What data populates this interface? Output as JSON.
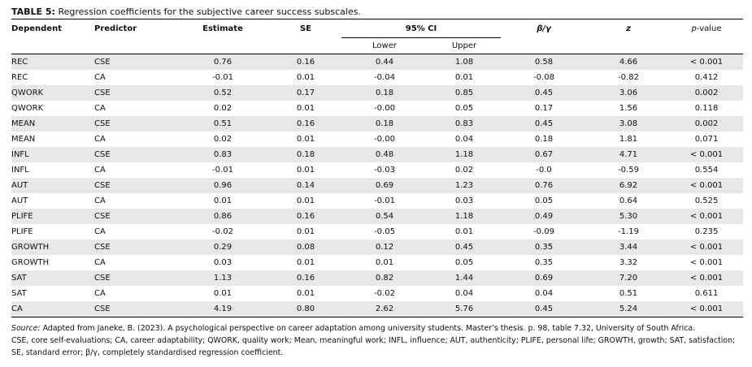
{
  "caption": {
    "label": "TABLE 5:",
    "text": "Regression coefficients for the subjective career success subscales."
  },
  "headers": {
    "dependent": "Dependent",
    "predictor": "Predictor",
    "estimate": "Estimate",
    "se": "SE",
    "ci": "95% CI",
    "lower": "Lower",
    "upper": "Upper",
    "beta": "β/γ",
    "z": "z",
    "p": "p",
    "p_suffix": "-value"
  },
  "rows": [
    {
      "dependent": "REC",
      "predictor": "CSE",
      "estimate": "0.76",
      "se": "0.16",
      "lower": "0.44",
      "upper": "1.08",
      "beta": "0.58",
      "z": "4.66",
      "p": "< 0.001"
    },
    {
      "dependent": "REC",
      "predictor": "CA",
      "estimate": "-0.01",
      "se": "0.01",
      "lower": "-0.04",
      "upper": "0.01",
      "beta": "-0.08",
      "z": "-0.82",
      "p": "0.412"
    },
    {
      "dependent": "QWORK",
      "predictor": "CSE",
      "estimate": "0.52",
      "se": "0.17",
      "lower": "0.18",
      "upper": "0.85",
      "beta": "0.45",
      "z": "3.06",
      "p": "0.002"
    },
    {
      "dependent": "QWORK",
      "predictor": "CA",
      "estimate": "0.02",
      "se": "0.01",
      "lower": "-0.00",
      "upper": "0.05",
      "beta": "0.17",
      "z": "1.56",
      "p": "0.118"
    },
    {
      "dependent": "MEAN",
      "predictor": "CSE",
      "estimate": "0.51",
      "se": "0.16",
      "lower": "0.18",
      "upper": "0.83",
      "beta": "0.45",
      "z": "3.08",
      "p": "0.002"
    },
    {
      "dependent": "MEAN",
      "predictor": "CA",
      "estimate": "0.02",
      "se": "0.01",
      "lower": "-0.00",
      "upper": "0.04",
      "beta": "0.18",
      "z": "1.81",
      "p": "0.071"
    },
    {
      "dependent": "INFL",
      "predictor": "CSE",
      "estimate": "0.83",
      "se": "0.18",
      "lower": "0.48",
      "upper": "1.18",
      "beta": "0.67",
      "z": "4.71",
      "p": "< 0.001"
    },
    {
      "dependent": "INFL",
      "predictor": "CA",
      "estimate": "-0.01",
      "se": "0.01",
      "lower": "-0.03",
      "upper": "0.02",
      "beta": "-0.0",
      "z": "-0.59",
      "p": "0.554"
    },
    {
      "dependent": "AUT",
      "predictor": "CSE",
      "estimate": "0.96",
      "se": "0.14",
      "lower": "0.69",
      "upper": "1.23",
      "beta": "0.76",
      "z": "6.92",
      "p": "< 0.001"
    },
    {
      "dependent": "AUT",
      "predictor": "CA",
      "estimate": "0.01",
      "se": "0.01",
      "lower": "-0.01",
      "upper": "0.03",
      "beta": "0.05",
      "z": "0.64",
      "p": "0.525"
    },
    {
      "dependent": "PLIFE",
      "predictor": "CSE",
      "estimate": "0.86",
      "se": "0.16",
      "lower": "0.54",
      "upper": "1.18",
      "beta": "0.49",
      "z": "5.30",
      "p": "< 0.001"
    },
    {
      "dependent": "PLIFE",
      "predictor": "CA",
      "estimate": "-0.02",
      "se": "0.01",
      "lower": "-0.05",
      "upper": "0.01",
      "beta": "-0.09",
      "z": "-1.19",
      "p": "0.235"
    },
    {
      "dependent": "GROWTH",
      "predictor": "CSE",
      "estimate": "0.29",
      "se": "0.08",
      "lower": "0.12",
      "upper": "0.45",
      "beta": "0.35",
      "z": "3.44",
      "p": "< 0.001"
    },
    {
      "dependent": "GROWTH",
      "predictor": "CA",
      "estimate": "0.03",
      "se": "0.01",
      "lower": "0.01",
      "upper": "0.05",
      "beta": "0.35",
      "z": "3.32",
      "p": "< 0.001"
    },
    {
      "dependent": "SAT",
      "predictor": "CSE",
      "estimate": "1.13",
      "se": "0.16",
      "lower": "0.82",
      "upper": "1.44",
      "beta": "0.69",
      "z": "7.20",
      "p": "< 0.001"
    },
    {
      "dependent": "SAT",
      "predictor": "CA",
      "estimate": "0.01",
      "se": "0.01",
      "lower": "-0.02",
      "upper": "0.04",
      "beta": "0.04",
      "z": "0.51",
      "p": "0.611"
    },
    {
      "dependent": "CA",
      "predictor": "CSE",
      "estimate": "4.19",
      "se": "0.80",
      "lower": "2.62",
      "upper": "5.76",
      "beta": "0.45",
      "z": "5.24",
      "p": "< 0.001"
    }
  ],
  "notes": {
    "source_label": "Source:",
    "source_text": "Adapted from Janeke, B. (2023). A psychological perspective on career adaptation among university students. Master’s thesis. p. 98, table 7.32, University of South Africa.",
    "abbrev_1": "CSE, core self-evaluations; CA, career adaptability; QWORK, quality work; Mean, meaningful work; INFL, influence; AUT, authenticity; PLIFE, personal life; GROWTH, growth; SAT, satisfaction;",
    "abbrev_2": "SE, standard error; β/γ, completely standardised regression coefficient."
  }
}
